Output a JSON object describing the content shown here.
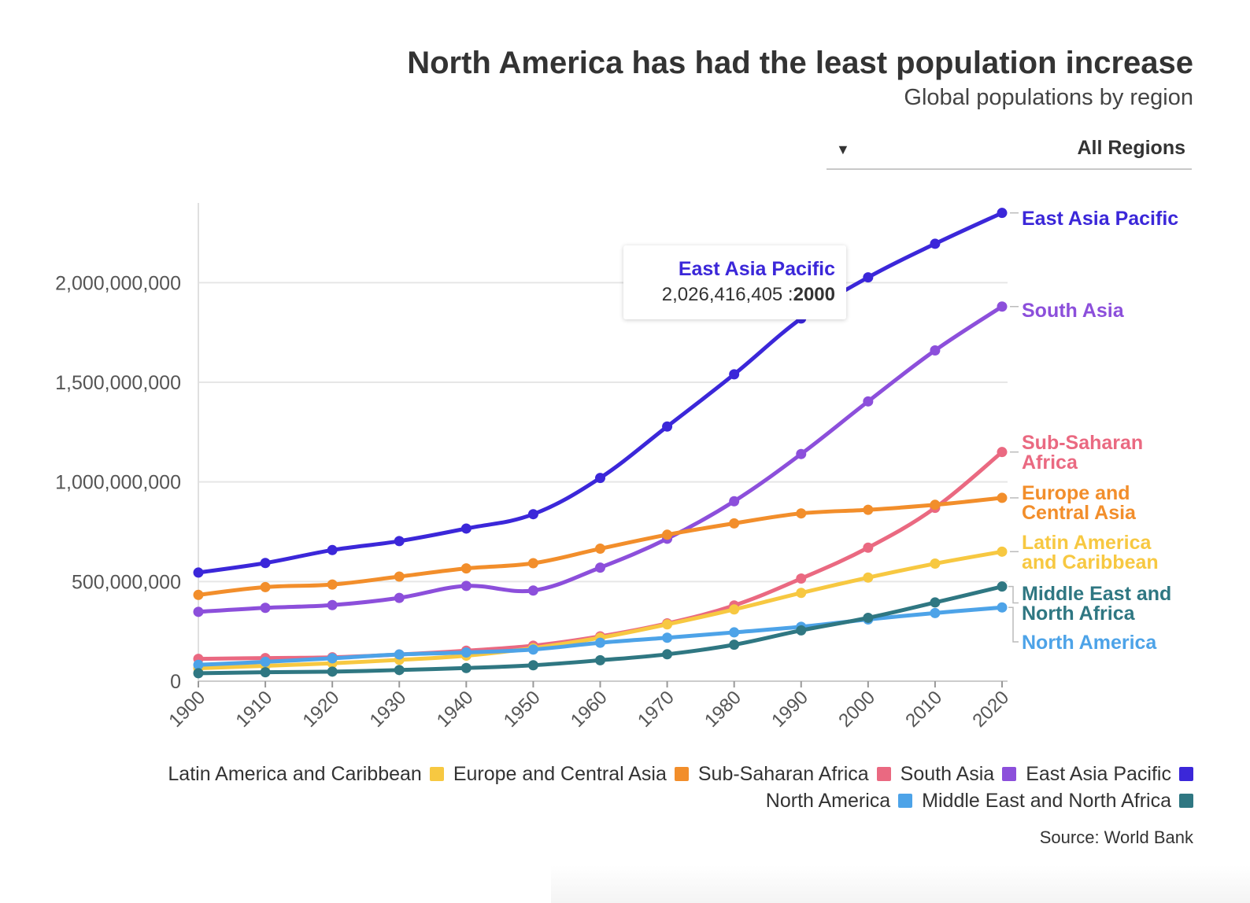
{
  "header": {
    "title": "North America has had the least population increase",
    "subtitle": "Global populations by region"
  },
  "dropdown": {
    "value": "All Regions",
    "arrow_icon": "caret-down-icon"
  },
  "tooltip": {
    "series": "East Asia Pacific",
    "value": "2,026,416,405",
    "separator": " :",
    "year": "2000",
    "color": "#3b27d9"
  },
  "legend": {
    "row1": [
      {
        "label": "Latin America and Caribbean",
        "color": "#f7c841"
      },
      {
        "label": "Europe and Central Asia",
        "color": "#f28e2b"
      },
      {
        "label": "Sub-Saharan Africa",
        "color": "#ea6981"
      },
      {
        "label": "South Asia",
        "color": "#8c4fdb"
      },
      {
        "label": "East Asia Pacific",
        "color": "#3b27d9"
      }
    ],
    "row2": [
      {
        "label": "North America",
        "color": "#4da3e8"
      },
      {
        "label": "Middle East and North Africa",
        "color": "#2f7782"
      }
    ]
  },
  "source": "Source: World Bank",
  "chart_data": {
    "type": "line",
    "title": "North America has had the least population increase",
    "subtitle": "Global populations by region",
    "xlabel": "",
    "ylabel": "",
    "x": [
      1900,
      1910,
      1920,
      1930,
      1940,
      1950,
      1960,
      1970,
      1980,
      1990,
      2000,
      2010,
      2020
    ],
    "ylim": [
      0,
      2400000000
    ],
    "yticks": [
      0,
      500000000,
      1000000000,
      1500000000,
      2000000000
    ],
    "ytick_labels": [
      "0",
      "500,000,000",
      "1,000,000,000",
      "1,500,000,000",
      "2,000,000,000"
    ],
    "grid": true,
    "series": [
      {
        "name": "East Asia Pacific",
        "end_label": [
          "East Asia Pacific"
        ],
        "color": "#3b27d9",
        "values": [
          545000000,
          593000000,
          658000000,
          703000000,
          766000000,
          838000000,
          1020000000,
          1278000000,
          1540000000,
          1820000000,
          2026416405,
          2195000000,
          2350000000
        ]
      },
      {
        "name": "South Asia",
        "end_label": [
          "South Asia"
        ],
        "color": "#8c4fdb",
        "values": [
          348000000,
          368000000,
          382000000,
          418000000,
          478000000,
          455000000,
          570000000,
          715000000,
          903000000,
          1140000000,
          1404000000,
          1660000000,
          1880000000
        ]
      },
      {
        "name": "Sub-Saharan Africa",
        "end_label": [
          "Sub-Saharan",
          "Africa"
        ],
        "color": "#ea6981",
        "values": [
          112000000,
          116000000,
          120000000,
          134000000,
          153000000,
          178000000,
          225000000,
          290000000,
          380000000,
          515000000,
          670000000,
          870000000,
          1150000000
        ]
      },
      {
        "name": "Europe and Central Asia",
        "end_label": [
          "Europe and",
          "Central Asia"
        ],
        "color": "#f28e2b",
        "values": [
          433000000,
          472000000,
          485000000,
          525000000,
          566000000,
          592000000,
          665000000,
          735000000,
          792000000,
          842000000,
          860000000,
          885000000,
          920000000
        ]
      },
      {
        "name": "Latin America and Caribbean",
        "end_label": [
          "Latin America",
          "and Caribbean"
        ],
        "color": "#f7c841",
        "values": [
          65000000,
          77000000,
          90000000,
          107000000,
          128000000,
          166000000,
          218000000,
          285000000,
          360000000,
          443000000,
          520000000,
          590000000,
          650000000
        ]
      },
      {
        "name": "Middle East and North Africa",
        "end_label": [
          "Middle East and",
          "North Africa"
        ],
        "color": "#2f7782",
        "values": [
          40000000,
          45000000,
          48000000,
          56000000,
          66000000,
          80000000,
          105000000,
          135000000,
          183000000,
          255000000,
          318000000,
          395000000,
          475000000
        ]
      },
      {
        "name": "North America",
        "end_label": [
          "North America"
        ],
        "color": "#4da3e8",
        "values": [
          82000000,
          97000000,
          115000000,
          134000000,
          144000000,
          159000000,
          193000000,
          218000000,
          245000000,
          273000000,
          310000000,
          342000000,
          370000000
        ]
      }
    ]
  }
}
